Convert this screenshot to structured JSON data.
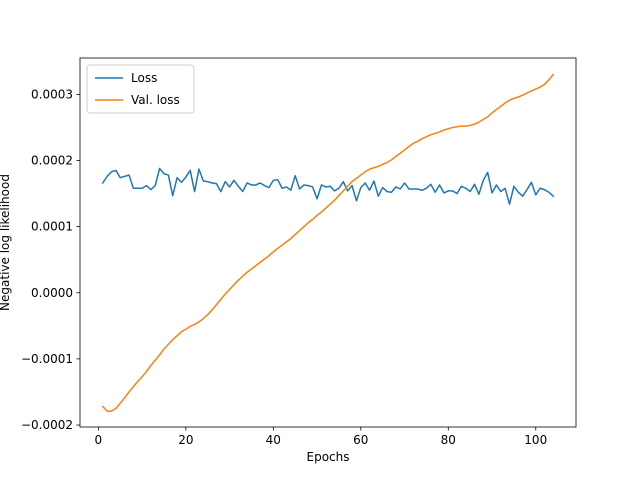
{
  "chart_data": {
    "type": "line",
    "title": "",
    "xlabel": "Epochs",
    "ylabel": "Negative log likelihood",
    "xlim": [
      -4.2,
      109.2
    ],
    "ylim": [
      -0.000203,
      0.000355
    ],
    "xticks": [
      0,
      20,
      40,
      60,
      80,
      100
    ],
    "xtick_labels": [
      "0",
      "20",
      "40",
      "60",
      "80",
      "100"
    ],
    "yticks": [
      -0.0002,
      -0.0001,
      0.0,
      0.0001,
      0.0002,
      0.0003
    ],
    "ytick_labels": [
      "−0.0002",
      "−0.0001",
      "0.0000",
      "0.0001",
      "0.0002",
      "0.0003"
    ],
    "grid": false,
    "legend_position": "top-left",
    "series": [
      {
        "name": "Loss",
        "color": "#1f77b4",
        "x_start": 1,
        "x_step": 1,
        "values": [
          0.000166,
          0.000176,
          0.000183,
          0.000185,
          0.000174,
          0.000176,
          0.000178,
          0.000158,
          0.000158,
          0.000158,
          0.000162,
          0.000156,
          0.000162,
          0.000188,
          0.00018,
          0.000178,
          0.000147,
          0.000174,
          0.000167,
          0.000175,
          0.000185,
          0.000153,
          0.000187,
          0.000169,
          0.000168,
          0.000166,
          0.000165,
          0.000153,
          0.000168,
          0.00016,
          0.00017,
          0.000161,
          0.000153,
          0.000166,
          0.000163,
          0.000163,
          0.000166,
          0.000162,
          0.000159,
          0.00017,
          0.000171,
          0.000158,
          0.00016,
          0.000155,
          0.000177,
          0.000157,
          0.000163,
          0.000162,
          0.00016,
          0.000142,
          0.000163,
          0.00016,
          0.000161,
          0.000154,
          0.000158,
          0.000168,
          0.000154,
          0.000162,
          0.000139,
          0.000159,
          0.000166,
          0.000155,
          0.000169,
          0.000146,
          0.000159,
          0.000153,
          0.000152,
          0.00016,
          0.000157,
          0.000166,
          0.000157,
          0.000157,
          0.000157,
          0.000155,
          0.000158,
          0.000164,
          0.000152,
          0.000163,
          0.000151,
          0.000154,
          0.000154,
          0.00015,
          0.000161,
          0.000158,
          0.000153,
          0.000164,
          0.000149,
          0.00017,
          0.000182,
          0.000151,
          0.000163,
          0.000153,
          0.000158,
          0.000134,
          0.000161,
          0.000152,
          0.000146,
          0.000156,
          0.000167,
          0.000148,
          0.000158,
          0.000156,
          0.000152,
          0.000146
        ]
      },
      {
        "name": "Val. loss",
        "color": "#ff7f0e",
        "x_start": 1,
        "x_step": 1,
        "values": [
          -0.000172,
          -0.000179,
          -0.000179,
          -0.000175,
          -0.000167,
          -0.000159,
          -0.00015,
          -0.000142,
          -0.000134,
          -0.000127,
          -0.000119,
          -0.00011,
          -0.000102,
          -9.4e-05,
          -8.5e-05,
          -7.8e-05,
          -7.1e-05,
          -6.5e-05,
          -5.9e-05,
          -5.5e-05,
          -5.1e-05,
          -4.8e-05,
          -4.4e-05,
          -3.9e-05,
          -3.3e-05,
          -2.6e-05,
          -1.8e-05,
          -1e-05,
          -2e-06,
          5e-06,
          1.2e-05,
          1.9e-05,
          2.5e-05,
          3.1e-05,
          3.6e-05,
          4.1e-05,
          4.6e-05,
          5.1e-05,
          5.6e-05,
          6.2e-05,
          6.7e-05,
          7.2e-05,
          7.7e-05,
          8.2e-05,
          8.8e-05,
          9.4e-05,
          0.0001,
          0.000106,
          0.000111,
          0.000117,
          0.000122,
          0.000128,
          0.000134,
          0.00014,
          0.000147,
          0.000154,
          0.000161,
          0.000168,
          0.000173,
          0.000178,
          0.000183,
          0.000187,
          0.000189,
          0.000191,
          0.000194,
          0.000197,
          0.000201,
          0.000206,
          0.000211,
          0.000216,
          0.000221,
          0.000226,
          0.000229,
          0.000233,
          0.000236,
          0.000239,
          0.000241,
          0.000243,
          0.000246,
          0.000248,
          0.00025,
          0.000251,
          0.000252,
          0.000252,
          0.000253,
          0.000255,
          0.000258,
          0.000262,
          0.000266,
          0.000272,
          0.000277,
          0.000282,
          0.000287,
          0.000291,
          0.000294,
          0.000296,
          0.000299,
          0.000302,
          0.000305,
          0.000308,
          0.000311,
          0.000315,
          0.000322,
          0.00033
        ]
      }
    ]
  }
}
